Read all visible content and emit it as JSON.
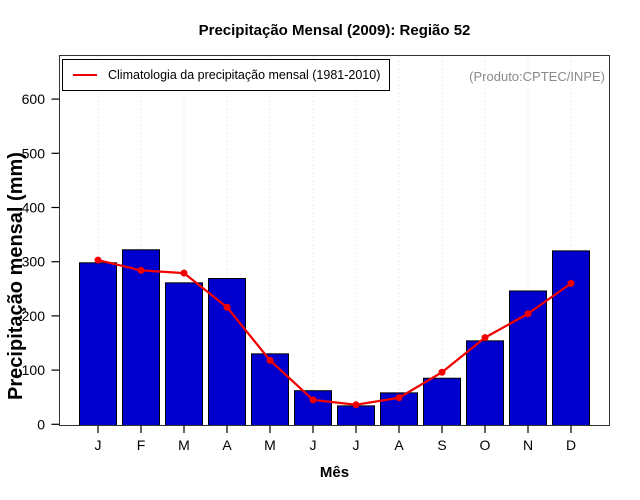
{
  "colors": {
    "bar_fill": "#0000ce",
    "bar_border": "#000000",
    "line": "#f00000",
    "point": "#f00000",
    "grid": "#d9d9d9",
    "frame": "#333333",
    "tick": "#000000",
    "tick_text": "#000000",
    "watermark_text": "#8a8a8a"
  },
  "chart_data": {
    "type": "bar",
    "title": "Precipitação Mensal (2009): Região 52",
    "xlabel": "Mês",
    "ylabel": "Precipitação mensal (mm)",
    "annotation": "(Produto:CPTEC/INPE)",
    "categories": [
      "J",
      "F",
      "M",
      "A",
      "M",
      "J",
      "J",
      "A",
      "S",
      "O",
      "N",
      "D"
    ],
    "series": [
      {
        "name": "Precipitação mensal (2009)",
        "type": "bar",
        "values": [
          298,
          322,
          261,
          269,
          130,
          62,
          34,
          58,
          85,
          154,
          246,
          320
        ]
      },
      {
        "name": "Climatologia da precipitação mensal (1981-2010)",
        "type": "line",
        "values": [
          303,
          284,
          279,
          216,
          118,
          45,
          36,
          49,
          96,
          160,
          204,
          260
        ]
      }
    ],
    "ylim": [
      0,
      600
    ],
    "yticks": [
      0,
      100,
      200,
      300,
      400,
      500,
      600
    ],
    "grid": "vertical dotted gridlines at each month",
    "legend_position": "top-left"
  }
}
